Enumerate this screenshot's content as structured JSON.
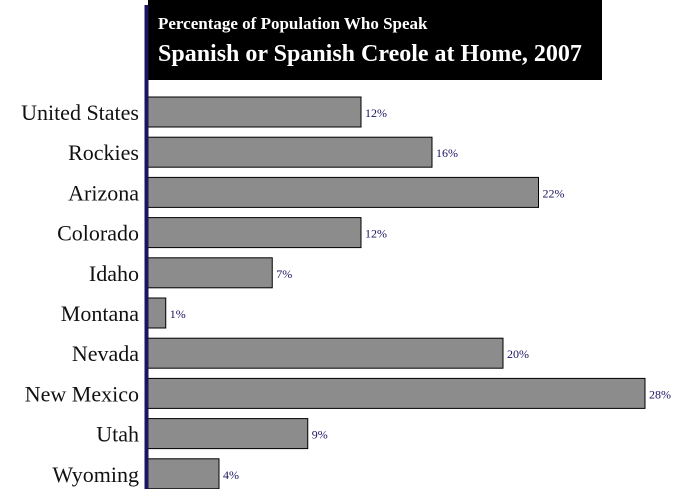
{
  "chart_data": {
    "type": "bar",
    "orientation": "horizontal",
    "title": "Spanish or Spanish Creole at Home, 2007",
    "subtitle": "Percentage of Population Who Speak",
    "categories": [
      "United States",
      "Rockies",
      "Arizona",
      "Colorado",
      "Idaho",
      "Montana",
      "Nevada",
      "New Mexico",
      "Utah",
      "Wyoming"
    ],
    "values": [
      12,
      16,
      22,
      12,
      7,
      1,
      20,
      28,
      9,
      4
    ],
    "value_labels": [
      "12%",
      "16%",
      "22%",
      "12%",
      "7%",
      "1%",
      "20%",
      "28%",
      "9%",
      "4%"
    ],
    "unit": "%",
    "xlim": [
      0,
      28
    ],
    "grid": false,
    "legend": "none",
    "colors": {
      "bar": "#8c8c8c",
      "bar_border": "#000000",
      "axis_line": "#1a1560",
      "value_label": "#1a1560",
      "title_background": "#000000",
      "title_text": "#ffffff"
    }
  }
}
